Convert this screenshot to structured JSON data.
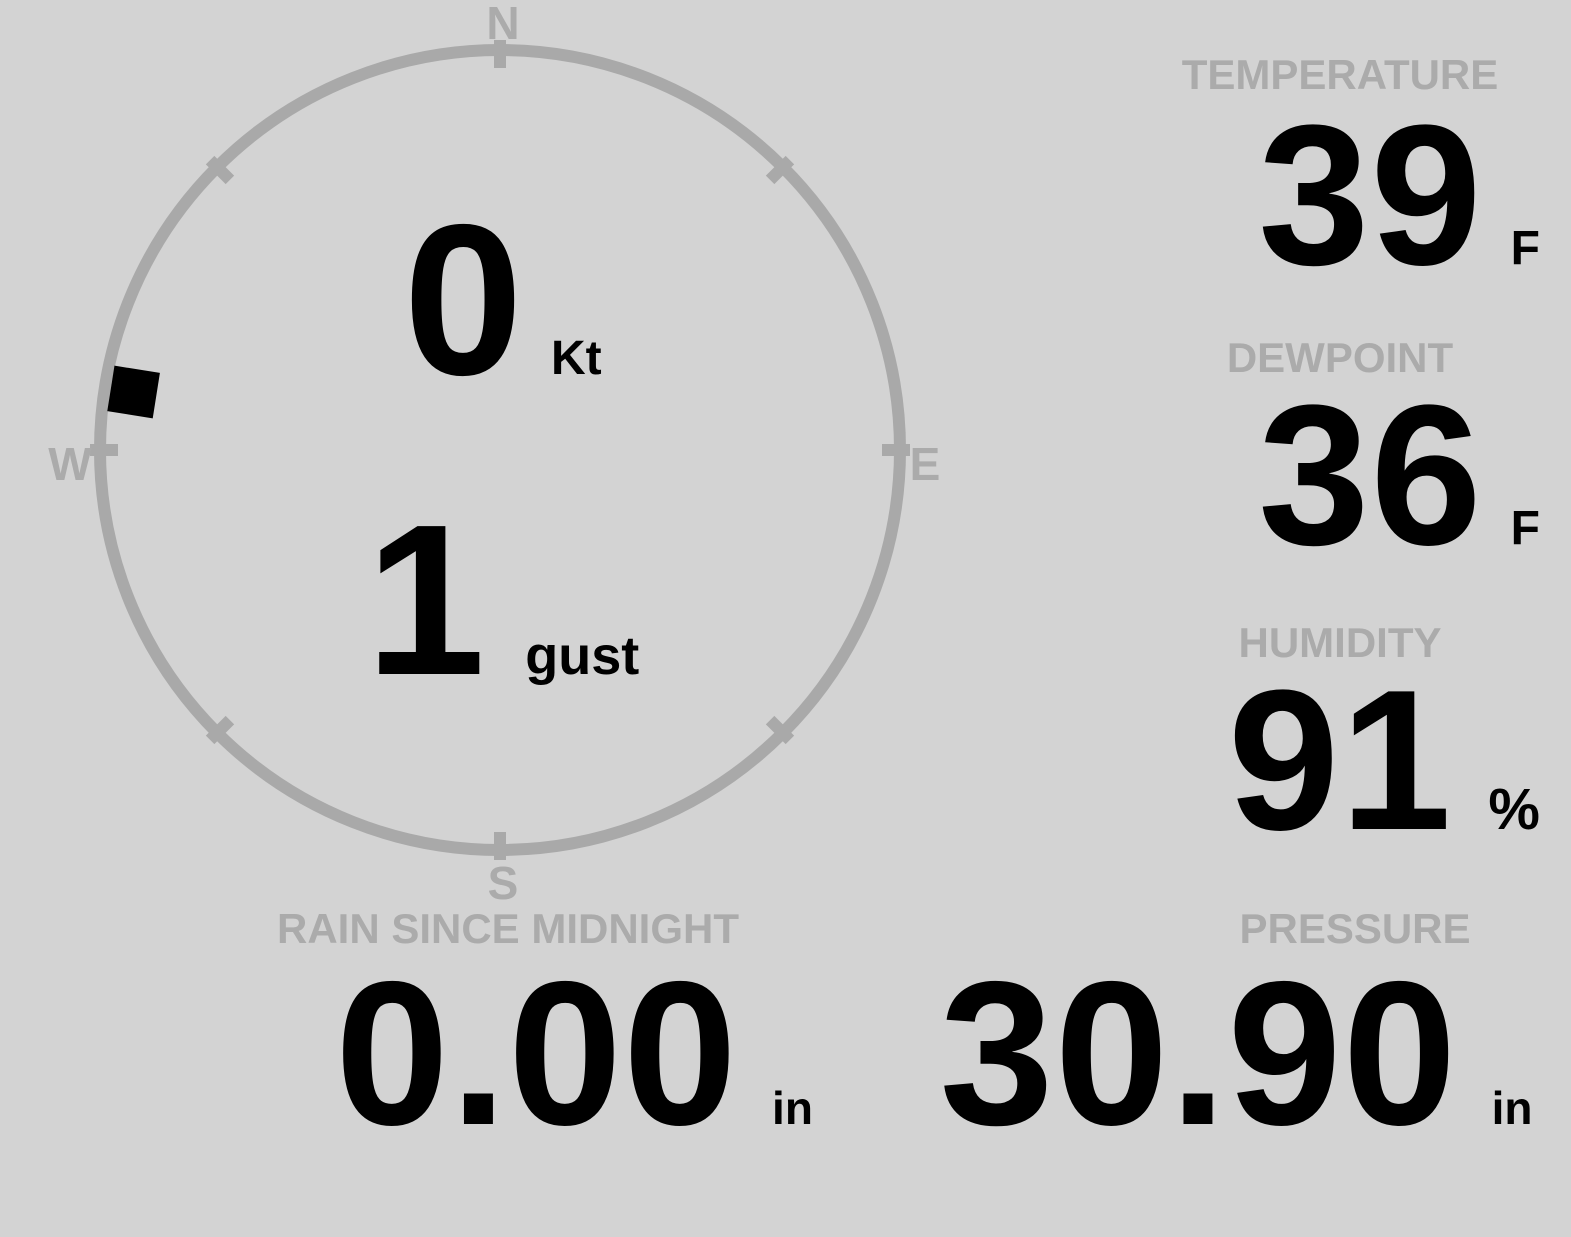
{
  "colors": {
    "background": "#d3d3d3",
    "muted_gray": "#ababab",
    "ring_gray": "#a9a9a9",
    "value_black": "#000000"
  },
  "wind": {
    "speed": "0",
    "speed_unit": "Kt",
    "gust": "1",
    "gust_label": "gust",
    "direction_deg": 279,
    "cardinals": {
      "n": "N",
      "e": "E",
      "s": "S",
      "w": "W"
    }
  },
  "metrics": [
    {
      "id": "temperature",
      "label": "TEMPERATURE",
      "value": "39",
      "unit": "F"
    },
    {
      "id": "dewpoint",
      "label": "DEWPOINT",
      "value": "36",
      "unit": "F"
    },
    {
      "id": "humidity",
      "label": "HUMIDITY",
      "value": "91",
      "unit": "%"
    }
  ],
  "bottom": [
    {
      "id": "rain",
      "label": "RAIN SINCE MIDNIGHT",
      "value": "0.00",
      "unit": "in"
    },
    {
      "id": "pressure",
      "label": "PRESSURE",
      "value": "30.90",
      "unit": "in"
    }
  ]
}
